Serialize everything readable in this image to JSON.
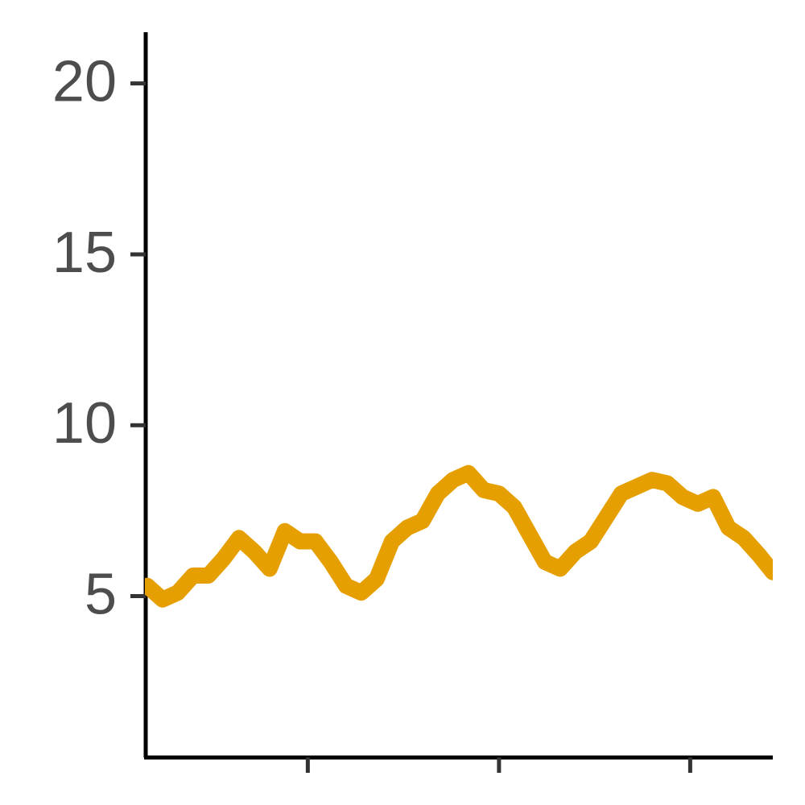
{
  "chart_data": {
    "type": "line",
    "x": [
      4,
      6,
      8,
      10,
      12,
      14,
      16,
      18,
      20,
      22,
      24,
      26,
      28,
      30,
      32,
      34,
      36,
      38,
      40,
      42,
      44,
      46,
      48,
      50,
      52,
      54,
      56,
      58,
      60,
      62,
      64,
      66,
      68,
      70,
      72,
      74,
      76,
      78,
      80,
      82,
      84,
      85.8
    ],
    "series": [
      {
        "color": "#E69F00",
        "values": [
          5.3,
          4.9,
          5.1,
          5.6,
          5.6,
          6.1,
          6.7,
          6.3,
          5.8,
          6.9,
          6.6,
          6.6,
          6.0,
          5.3,
          5.1,
          5.5,
          6.6,
          7.0,
          7.2,
          8.0,
          8.4,
          8.6,
          8.1,
          8.0,
          7.6,
          6.8,
          6.0,
          5.8,
          6.3,
          6.6,
          7.3,
          8.0,
          8.2,
          8.4,
          8.3,
          7.9,
          7.7,
          7.9,
          7.0,
          6.7,
          6.2,
          5.7
        ]
      }
    ],
    "xlim": [
      3.7,
      85.8
    ],
    "xticks": [
      25,
      50,
      75
    ],
    "ylim": [
      0.3,
      21.5
    ],
    "yticks": [
      5,
      10,
      15,
      20
    ]
  }
}
